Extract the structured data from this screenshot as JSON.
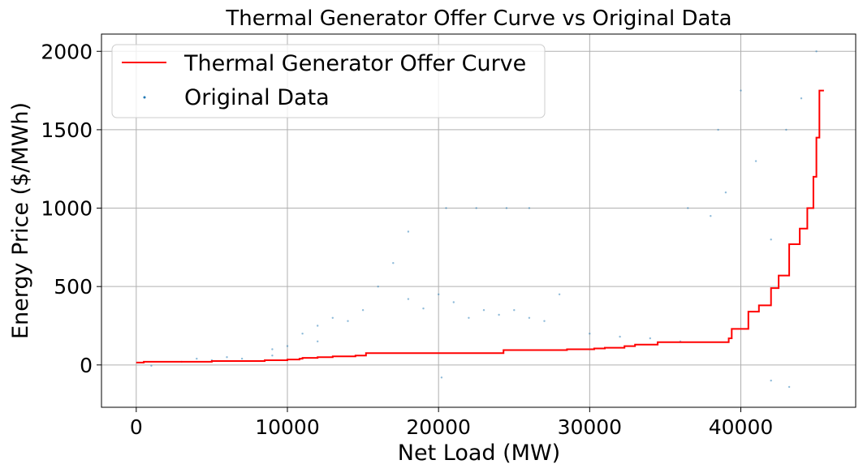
{
  "chart_data": {
    "type": "scatter",
    "title": "Thermal Generator Offer Curve vs Original Data",
    "xlabel": "Net Load (MW)",
    "ylabel": "Energy Price ($/MWh)",
    "xlim": [
      -2300,
      47600
    ],
    "ylim": [
      -270,
      2110
    ],
    "xticks": [
      0,
      10000,
      20000,
      30000,
      40000
    ],
    "yticks": [
      0,
      500,
      1000,
      1500,
      2000
    ],
    "grid": true,
    "legend_position": "top-left",
    "series": [
      {
        "name": "Thermal Generator Offer Curve",
        "type": "step-line",
        "color": "#ff0000",
        "x": [
          0,
          500,
          2000,
          5000,
          7000,
          8500,
          10000,
          10800,
          11000,
          12000,
          13000,
          14500,
          15200,
          19000,
          22000,
          24300,
          28500,
          30300,
          31000,
          32300,
          33000,
          34500,
          39200,
          39400,
          40500,
          41200,
          42000,
          42500,
          43200,
          43900,
          44400,
          44800,
          45000,
          45200,
          45500
        ],
        "y": [
          15,
          20,
          20,
          25,
          25,
          30,
          35,
          40,
          45,
          50,
          55,
          60,
          75,
          75,
          75,
          95,
          100,
          105,
          110,
          120,
          130,
          145,
          170,
          230,
          340,
          380,
          490,
          570,
          770,
          870,
          1000,
          1200,
          1450,
          1750,
          1750
        ]
      },
      {
        "name": "Original Data",
        "type": "scatter",
        "color": "#1f77b4",
        "points": [
          [
            1000,
            -5
          ],
          [
            3000,
            20
          ],
          [
            5000,
            30
          ],
          [
            7000,
            40
          ],
          [
            9000,
            60
          ],
          [
            10000,
            120
          ],
          [
            11000,
            200
          ],
          [
            12000,
            250
          ],
          [
            13000,
            300
          ],
          [
            14000,
            280
          ],
          [
            15000,
            350
          ],
          [
            16000,
            500
          ],
          [
            17000,
            650
          ],
          [
            18000,
            420
          ],
          [
            19000,
            360
          ],
          [
            20000,
            450
          ],
          [
            21000,
            400
          ],
          [
            22000,
            300
          ],
          [
            23000,
            350
          ],
          [
            24000,
            320
          ],
          [
            25000,
            350
          ],
          [
            26000,
            300
          ],
          [
            27000,
            280
          ],
          [
            28000,
            450
          ],
          [
            30000,
            200
          ],
          [
            32000,
            180
          ],
          [
            34000,
            170
          ],
          [
            36000,
            150
          ],
          [
            38000,
            950
          ],
          [
            39000,
            1100
          ],
          [
            40000,
            1750
          ],
          [
            41000,
            1300
          ],
          [
            42000,
            800
          ],
          [
            43000,
            1500
          ],
          [
            44000,
            1700
          ],
          [
            45000,
            2000
          ],
          [
            20500,
            1000
          ],
          [
            22500,
            1000
          ],
          [
            24500,
            1000
          ],
          [
            26000,
            1000
          ],
          [
            18000,
            850
          ],
          [
            36500,
            1000
          ],
          [
            38500,
            1500
          ],
          [
            42000,
            -100
          ],
          [
            43200,
            -140
          ],
          [
            20200,
            -80
          ],
          [
            9000,
            100
          ],
          [
            6000,
            50
          ],
          [
            4000,
            40
          ],
          [
            12000,
            150
          ]
        ]
      }
    ]
  }
}
